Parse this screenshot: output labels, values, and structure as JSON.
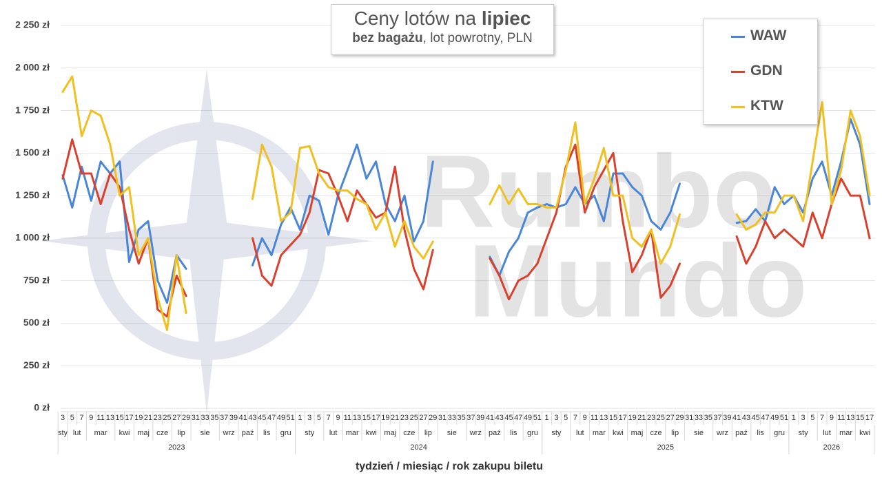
{
  "chart_data": {
    "type": "line",
    "title": [
      "Ceny lotów na",
      "lipiec"
    ],
    "subtitle": [
      "bez bagażu",
      ", lot powrotny, PLN"
    ],
    "x_label": "tydzień / miesiąc / rok zakupu biletu",
    "watermark": [
      "Rumbo",
      "Mundo"
    ],
    "categories": [
      3,
      5,
      7,
      9,
      11,
      13,
      15,
      17,
      19,
      21,
      23,
      25,
      27,
      29,
      31,
      33,
      35,
      37,
      39,
      41,
      43,
      45,
      47,
      49,
      51,
      1,
      3,
      5,
      7,
      9,
      11,
      13,
      15,
      17,
      19,
      21,
      23,
      25,
      27,
      29,
      31,
      33,
      35,
      37,
      39,
      41,
      43,
      45,
      47,
      49,
      51,
      1,
      3,
      5,
      7,
      9,
      11,
      13,
      15,
      17,
      19,
      21,
      23,
      25,
      27,
      29,
      31,
      33,
      35,
      37,
      39,
      41,
      43,
      45,
      47,
      49,
      51,
      1,
      3,
      5,
      7,
      9,
      11,
      13,
      15,
      17
    ],
    "months": [
      {
        "label": "sty",
        "count": 1
      },
      {
        "label": "lut",
        "count": 2
      },
      {
        "label": "mar",
        "count": 3
      },
      {
        "label": "kwi",
        "count": 2
      },
      {
        "label": "maj",
        "count": 2
      },
      {
        "label": "cze",
        "count": 2
      },
      {
        "label": "lip",
        "count": 2
      },
      {
        "label": "sie",
        "count": 3
      },
      {
        "label": "wrz",
        "count": 2
      },
      {
        "label": "paź",
        "count": 2
      },
      {
        "label": "lis",
        "count": 2
      },
      {
        "label": "gru",
        "count": 2
      },
      {
        "label": "sty",
        "count": 3
      },
      {
        "label": "lut",
        "count": 2
      },
      {
        "label": "mar",
        "count": 2
      },
      {
        "label": "kwi",
        "count": 2
      },
      {
        "label": "maj",
        "count": 2
      },
      {
        "label": "cze",
        "count": 2
      },
      {
        "label": "lip",
        "count": 2
      },
      {
        "label": "sie",
        "count": 3
      },
      {
        "label": "wrz",
        "count": 2
      },
      {
        "label": "paź",
        "count": 2
      },
      {
        "label": "lis",
        "count": 2
      },
      {
        "label": "gru",
        "count": 2
      },
      {
        "label": "sty",
        "count": 3
      },
      {
        "label": "lut",
        "count": 2
      },
      {
        "label": "mar",
        "count": 2
      },
      {
        "label": "kwi",
        "count": 2
      },
      {
        "label": "maj",
        "count": 2
      },
      {
        "label": "cze",
        "count": 2
      },
      {
        "label": "lip",
        "count": 2
      },
      {
        "label": "sie",
        "count": 3
      },
      {
        "label": "wrz",
        "count": 2
      },
      {
        "label": "paź",
        "count": 2
      },
      {
        "label": "lis",
        "count": 2
      },
      {
        "label": "gru",
        "count": 2
      },
      {
        "label": "sty",
        "count": 3
      },
      {
        "label": "lut",
        "count": 2
      },
      {
        "label": "mar",
        "count": 2
      },
      {
        "label": "kwi",
        "count": 2
      }
    ],
    "years": [
      {
        "label": "2023",
        "count": 25
      },
      {
        "label": "2024",
        "count": 26
      },
      {
        "label": "2025",
        "count": 26
      },
      {
        "label": "2026",
        "count": 9
      }
    ],
    "ylim": [
      0,
      2250
    ],
    "yticks": [
      {
        "value": 0,
        "label": "0 zł"
      },
      {
        "value": 250,
        "label": "250 zł"
      },
      {
        "value": 500,
        "label": "500 zł"
      },
      {
        "value": 750,
        "label": "750 zł"
      },
      {
        "value": 1000,
        "label": "1 000 zł"
      },
      {
        "value": 1250,
        "label": "1 250 zł"
      },
      {
        "value": 1500,
        "label": "1 500 zł"
      },
      {
        "value": 1750,
        "label": "1 750 zł"
      },
      {
        "value": 2000,
        "label": "2 000 zł"
      },
      {
        "value": 2250,
        "label": "2 250 zł"
      }
    ],
    "grid": true,
    "legend": "top-right",
    "series": [
      {
        "name": "WAW",
        "color": "#4a86d8",
        "values": [
          1370,
          1180,
          1420,
          1220,
          1450,
          1380,
          1450,
          860,
          1050,
          1100,
          750,
          620,
          900,
          820,
          null,
          null,
          null,
          null,
          null,
          null,
          840,
          1000,
          900,
          1080,
          1180,
          1050,
          1250,
          1220,
          1020,
          1250,
          1400,
          1550,
          1350,
          1450,
          1200,
          1100,
          1250,
          980,
          1100,
          1450,
          null,
          null,
          null,
          null,
          null,
          890,
          780,
          920,
          1000,
          1150,
          1180,
          1200,
          1180,
          1200,
          1300,
          1200,
          1250,
          1100,
          1380,
          1380,
          1300,
          1250,
          1100,
          1050,
          1150,
          1320,
          null,
          null,
          null,
          null,
          null,
          1090,
          1100,
          1170,
          1100,
          1300,
          1200,
          1250,
          1150,
          1350,
          1450,
          1250,
          1450,
          1700,
          1550,
          1200
        ]
      },
      {
        "name": "GDN",
        "color": "#d9412e",
        "values": [
          1350,
          1580,
          1380,
          1380,
          1200,
          1380,
          1300,
          1050,
          850,
          1000,
          580,
          540,
          780,
          660,
          null,
          null,
          null,
          null,
          null,
          null,
          1000,
          780,
          720,
          900,
          960,
          1020,
          1150,
          1400,
          1380,
          1250,
          1100,
          1280,
          1200,
          1120,
          1150,
          1420,
          1050,
          820,
          700,
          930,
          null,
          null,
          null,
          null,
          null,
          880,
          780,
          640,
          750,
          780,
          850,
          1000,
          1150,
          1420,
          1550,
          1150,
          1300,
          1400,
          1500,
          1100,
          800,
          900,
          1050,
          650,
          720,
          850,
          null,
          null,
          null,
          null,
          null,
          1010,
          850,
          950,
          1100,
          1000,
          1050,
          1000,
          950,
          1150,
          1000,
          1200,
          1350,
          1250,
          1250,
          1000
        ]
      },
      {
        "name": "KTW",
        "color": "#f0c020",
        "values": [
          1860,
          1950,
          1600,
          1750,
          1720,
          1550,
          1250,
          1300,
          900,
          1000,
          650,
          460,
          900,
          560,
          null,
          null,
          null,
          null,
          null,
          null,
          1230,
          1550,
          1420,
          1100,
          1150,
          1530,
          1540,
          1380,
          1300,
          1280,
          1280,
          1230,
          1200,
          1050,
          1150,
          950,
          1100,
          950,
          880,
          980,
          null,
          null,
          null,
          null,
          null,
          1200,
          1310,
          1200,
          1290,
          1200,
          1200,
          1180,
          1180,
          1400,
          1680,
          1200,
          1350,
          1530,
          1250,
          1250,
          1000,
          950,
          1050,
          850,
          950,
          1140,
          null,
          null,
          null,
          null,
          null,
          1140,
          1050,
          1080,
          1150,
          1150,
          1250,
          1250,
          1100,
          1450,
          1800,
          1200,
          1400,
          1750,
          1600,
          1250
        ]
      }
    ]
  }
}
